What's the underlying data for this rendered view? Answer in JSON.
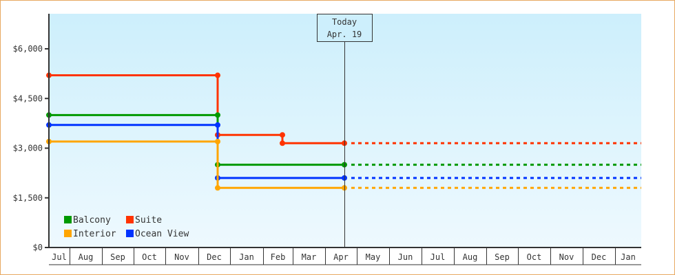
{
  "chart_data": {
    "type": "line",
    "subtype": "step",
    "title": "",
    "xlabel": "",
    "ylabel": "",
    "ylim": [
      0,
      7000
    ],
    "y_ticks": [
      {
        "value": 0,
        "label": "$0"
      },
      {
        "value": 1500,
        "label": "$1,500"
      },
      {
        "value": 3000,
        "label": "$3,000"
      },
      {
        "value": 4500,
        "label": "$4,500"
      },
      {
        "value": 6000,
        "label": "$6,000"
      }
    ],
    "x_months": [
      "Jul",
      "Aug",
      "Sep",
      "Oct",
      "Nov",
      "Dec",
      "Jan",
      "Feb",
      "Mar",
      "Apr",
      "May",
      "Jun",
      "Jul",
      "Aug",
      "Sep",
      "Oct",
      "Nov",
      "Dec",
      "Jan"
    ],
    "today_marker": {
      "line1": "Today",
      "line2": "Apr. 19"
    },
    "legend": {
      "position": "bottom-left",
      "entries": [
        "Balcony",
        "Suite",
        "Interior",
        "Ocean View"
      ]
    },
    "grid": false,
    "series": [
      {
        "name": "Suite",
        "color": "#ff3300",
        "points": [
          {
            "date": "Jul",
            "value": 5200
          },
          {
            "date": "early Dec",
            "value": 5200
          },
          {
            "date": "early Dec",
            "value": 3400
          },
          {
            "date": "mid Feb",
            "value": 3400
          },
          {
            "date": "mid Feb",
            "value": 3150
          },
          {
            "date": "Apr 19",
            "value": 3150
          }
        ],
        "projected_value": 3150
      },
      {
        "name": "Balcony",
        "color": "#009900",
        "points": [
          {
            "date": "Jul",
            "value": 4000
          },
          {
            "date": "early Dec",
            "value": 4000
          },
          {
            "date": "early Dec",
            "value": 2500
          },
          {
            "date": "Apr 19",
            "value": 2500
          }
        ],
        "projected_value": 2500
      },
      {
        "name": "Ocean View",
        "color": "#0033ff",
        "points": [
          {
            "date": "Jul",
            "value": 3700
          },
          {
            "date": "early Dec",
            "value": 3700
          },
          {
            "date": "early Dec",
            "value": 2100
          },
          {
            "date": "Apr 19",
            "value": 2100
          }
        ],
        "projected_value": 2100
      },
      {
        "name": "Interior",
        "color": "#ffa500",
        "points": [
          {
            "date": "Jul",
            "value": 3200
          },
          {
            "date": "early Dec",
            "value": 3200
          },
          {
            "date": "early Dec",
            "value": 1800
          },
          {
            "date": "Apr 19",
            "value": 1800
          }
        ],
        "projected_value": 1800
      }
    ]
  },
  "colors": {
    "border": "#e8a860",
    "plot_bg_top": "#cdeffc",
    "plot_bg_bottom": "#eef9fe",
    "axis": "#333333",
    "suite": "#ff3300",
    "balcony": "#009900",
    "ocean_view": "#0033ff",
    "interior": "#ffa500"
  }
}
